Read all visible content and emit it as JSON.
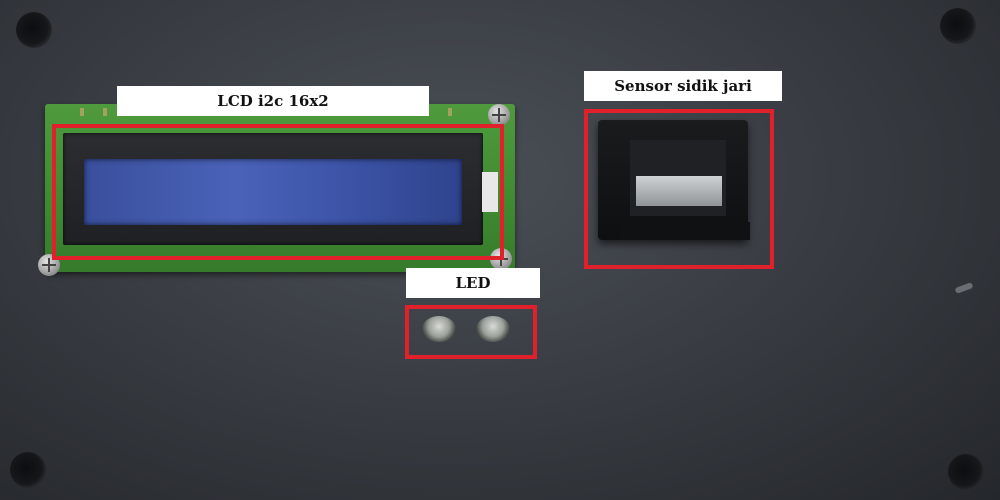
{
  "labels": {
    "lcd": "LCD i2c 16x2",
    "sensor": "Sensor sidik jari",
    "led": "LED"
  },
  "colors": {
    "highlight": "#e0202a",
    "panel": "#3a3e44",
    "lcd_backlight": "#4a63b8",
    "pcb": "#3f8a31"
  }
}
